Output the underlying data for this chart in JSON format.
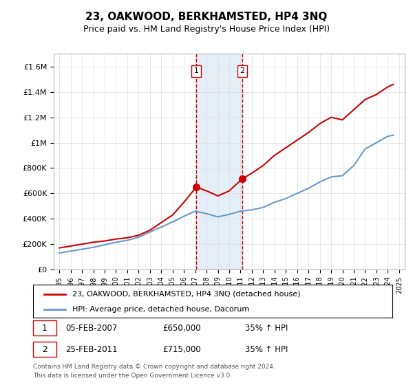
{
  "title": "23, OAKWOOD, BERKHAMSTED, HP4 3NQ",
  "subtitle": "Price paid vs. HM Land Registry's House Price Index (HPI)",
  "legend_line1": "23, OAKWOOD, BERKHAMSTED, HP4 3NQ (detached house)",
  "legend_line2": "HPI: Average price, detached house, Dacorum",
  "footer1": "Contains HM Land Registry data © Crown copyright and database right 2024.",
  "footer2": "This data is licensed under the Open Government Licence v3.0.",
  "table_rows": [
    {
      "num": "1",
      "date": "05-FEB-2007",
      "price": "£650,000",
      "hpi": "35% ↑ HPI"
    },
    {
      "num": "2",
      "date": "25-FEB-2011",
      "price": "£715,000",
      "hpi": "35% ↑ HPI"
    }
  ],
  "marker1_x": 2007.09,
  "marker1_y": 650000,
  "marker2_x": 2011.15,
  "marker2_y": 715000,
  "vline1_x": 2007.09,
  "vline2_x": 2011.15,
  "shade_xmin": 2007.09,
  "shade_xmax": 2011.15,
  "red_line_color": "#cc0000",
  "blue_line_color": "#6699cc",
  "shade_color": "#cce0f0",
  "vline_color": "#cc0000",
  "ylim_min": 0,
  "ylim_max": 1700000,
  "yticks": [
    0,
    200000,
    400000,
    600000,
    800000,
    1000000,
    1200000,
    1400000,
    1600000
  ],
  "ytick_labels": [
    "£0",
    "£200K",
    "£400K",
    "£600K",
    "£800K",
    "£1M",
    "£1.2M",
    "£1.4M",
    "£1.6M"
  ],
  "xlim_min": 1994.5,
  "xlim_max": 2025.5,
  "xticks": [
    1995,
    1996,
    1997,
    1998,
    1999,
    2000,
    2001,
    2002,
    2003,
    2004,
    2005,
    2006,
    2007,
    2008,
    2009,
    2010,
    2011,
    2012,
    2013,
    2014,
    2015,
    2016,
    2017,
    2018,
    2019,
    2020,
    2021,
    2022,
    2023,
    2024,
    2025
  ],
  "red_x": [
    1995,
    1996,
    1997,
    1998,
    1999,
    2000,
    2001,
    2002,
    2003,
    2004,
    2005,
    2006,
    2007.09,
    2008,
    2009,
    2010,
    2011.15,
    2012,
    2013,
    2014,
    2015,
    2016,
    2017,
    2018,
    2019,
    2020,
    2021,
    2022,
    2023,
    2024,
    2024.5
  ],
  "red_y": [
    170000,
    185000,
    200000,
    215000,
    225000,
    240000,
    250000,
    270000,
    310000,
    370000,
    430000,
    530000,
    650000,
    620000,
    580000,
    620000,
    715000,
    760000,
    820000,
    900000,
    960000,
    1020000,
    1080000,
    1150000,
    1200000,
    1180000,
    1260000,
    1340000,
    1380000,
    1440000,
    1460000
  ],
  "blue_x": [
    1995,
    1996,
    1997,
    1998,
    1999,
    2000,
    2001,
    2002,
    2003,
    2004,
    2005,
    2006,
    2007,
    2008,
    2009,
    2010,
    2011,
    2012,
    2013,
    2014,
    2015,
    2016,
    2017,
    2018,
    2019,
    2020,
    2021,
    2022,
    2023,
    2024,
    2024.5
  ],
  "blue_y": [
    130000,
    145000,
    160000,
    175000,
    195000,
    215000,
    230000,
    255000,
    295000,
    335000,
    375000,
    420000,
    460000,
    440000,
    415000,
    435000,
    460000,
    470000,
    490000,
    530000,
    560000,
    600000,
    640000,
    690000,
    730000,
    740000,
    820000,
    950000,
    1000000,
    1050000,
    1060000
  ]
}
